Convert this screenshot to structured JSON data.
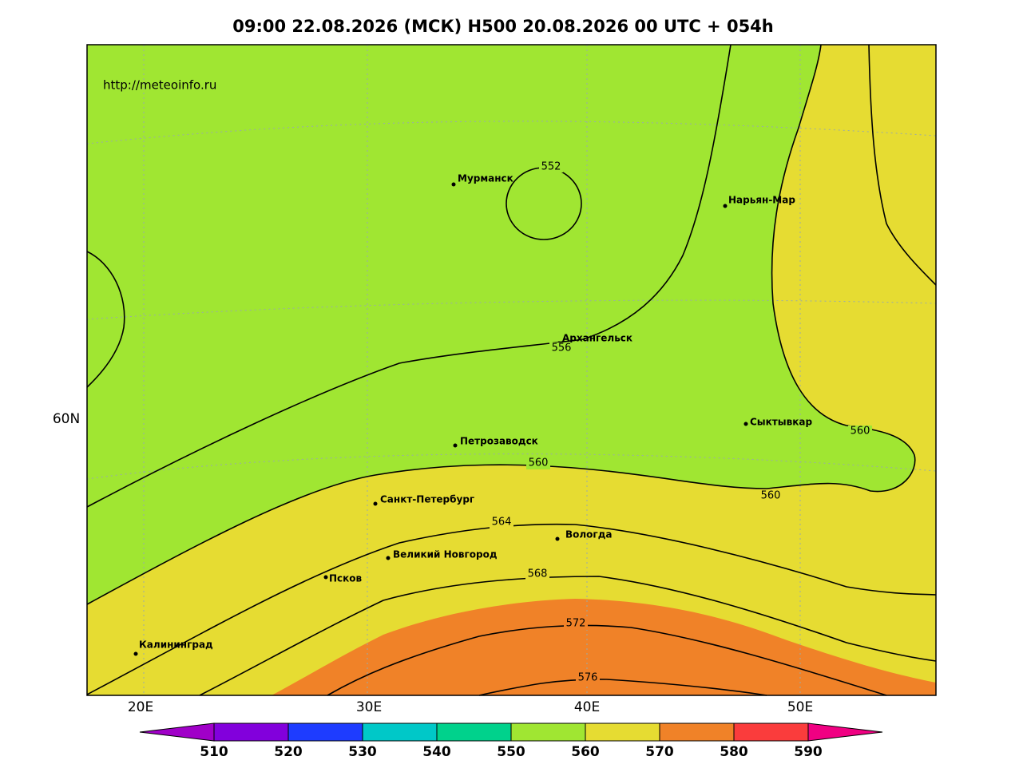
{
  "title": "09:00 22.08.2026 (МСК) H500  20.08.2026 00 UTC + 054h",
  "source_url": "http://meteoinfo.ru",
  "lat_labels": [
    "60N"
  ],
  "lon_labels": [
    "20E",
    "30E",
    "40E",
    "50E"
  ],
  "cities": [
    "Мурманск",
    "Нарьян-Мар",
    "Архангельск",
    "Сыктывкар",
    "Петрозаводск",
    "Санкт-Петербург",
    "Вологда",
    "Великий Новгород",
    "Псков",
    "Калининград"
  ],
  "contour_labels": [
    552,
    556,
    560,
    560,
    560,
    564,
    568,
    572,
    576
  ],
  "colorbar": {
    "ticks": [
      510,
      520,
      530,
      540,
      550,
      560,
      570,
      580,
      590
    ],
    "colors": [
      "#a000c8",
      "#8200dc",
      "#1e3cff",
      "#00c8c8",
      "#00d28c",
      "#a0e632",
      "#e6dc32",
      "#f08228",
      "#fa3c3c",
      "#f00082"
    ]
  }
}
